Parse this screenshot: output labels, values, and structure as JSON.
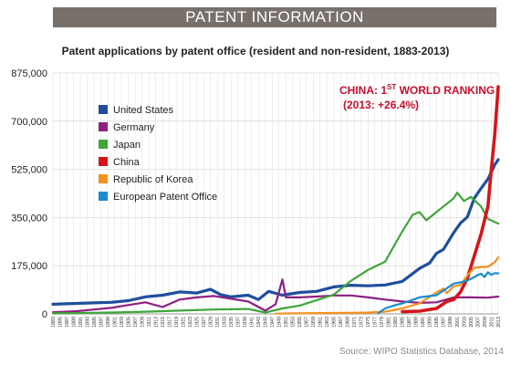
{
  "header": {
    "banner": "PATENT INFORMATION",
    "subtitle": "Patent applications by patent office (resident and non-resident, 1883-2013)",
    "source": "Source: WIPO Statistics Database, 2014"
  },
  "annotation": {
    "line1_prefix": "CHINA: 1",
    "line1_sup": "ST",
    "line1_suffix": " WORLD RANKING",
    "line2": "(2013: +26.4%)",
    "color": "#c8102e"
  },
  "chart_data": {
    "type": "line",
    "title": "Patent applications by patent office (resident and non-resident, 1883-2013)",
    "xlabel": "",
    "ylabel": "",
    "xlim": [
      1883,
      2013
    ],
    "ylim": [
      0,
      875000
    ],
    "yticks": [
      0,
      175000,
      350000,
      525000,
      700000,
      875000
    ],
    "ytick_labels": [
      "0",
      "175,000",
      "350,000",
      "525,000",
      "700,000",
      "875,000"
    ],
    "xtick_start": 1883,
    "xtick_end": 2013,
    "xtick_step": 2,
    "grid": true,
    "legend_position": "top-left",
    "series": [
      {
        "name": "United States",
        "color": "#1f4e9c",
        "points": [
          [
            1883,
            35000
          ],
          [
            1890,
            38000
          ],
          [
            1895,
            40000
          ],
          [
            1900,
            42000
          ],
          [
            1905,
            48000
          ],
          [
            1910,
            62000
          ],
          [
            1915,
            68000
          ],
          [
            1920,
            80000
          ],
          [
            1925,
            76000
          ],
          [
            1929,
            89000
          ],
          [
            1932,
            70000
          ],
          [
            1935,
            62000
          ],
          [
            1940,
            68000
          ],
          [
            1943,
            52000
          ],
          [
            1946,
            82000
          ],
          [
            1950,
            68000
          ],
          [
            1955,
            78000
          ],
          [
            1960,
            82000
          ],
          [
            1965,
            98000
          ],
          [
            1970,
            104000
          ],
          [
            1975,
            102000
          ],
          [
            1980,
            105000
          ],
          [
            1985,
            118000
          ],
          [
            1990,
            165000
          ],
          [
            1993,
            185000
          ],
          [
            1995,
            220000
          ],
          [
            1997,
            234000
          ],
          [
            2000,
            295000
          ],
          [
            2002,
            330000
          ],
          [
            2004,
            352000
          ],
          [
            2006,
            420000
          ],
          [
            2008,
            456000
          ],
          [
            2010,
            490000
          ],
          [
            2012,
            542000
          ],
          [
            2013,
            560000
          ]
        ]
      },
      {
        "name": "Germany",
        "color": "#8e1f82",
        "points": [
          [
            1883,
            6000
          ],
          [
            1890,
            10000
          ],
          [
            1895,
            16000
          ],
          [
            1900,
            22000
          ],
          [
            1905,
            32000
          ],
          [
            1910,
            42000
          ],
          [
            1915,
            25000
          ],
          [
            1920,
            52000
          ],
          [
            1925,
            60000
          ],
          [
            1930,
            65000
          ],
          [
            1935,
            55000
          ],
          [
            1940,
            45000
          ],
          [
            1945,
            12000
          ],
          [
            1948,
            35000
          ],
          [
            1950,
            125000
          ],
          [
            1951,
            60000
          ],
          [
            1955,
            60000
          ],
          [
            1960,
            63000
          ],
          [
            1965,
            67000
          ],
          [
            1970,
            67000
          ],
          [
            1975,
            60000
          ],
          [
            1980,
            52000
          ],
          [
            1985,
            45000
          ],
          [
            1990,
            40000
          ],
          [
            1995,
            42000
          ],
          [
            2000,
            60000
          ],
          [
            2005,
            60000
          ],
          [
            2010,
            59000
          ],
          [
            2013,
            63000
          ]
        ]
      },
      {
        "name": "Japan",
        "color": "#3fa63a",
        "points": [
          [
            1883,
            2000
          ],
          [
            1890,
            3000
          ],
          [
            1900,
            5000
          ],
          [
            1910,
            8000
          ],
          [
            1920,
            12000
          ],
          [
            1930,
            16000
          ],
          [
            1940,
            18000
          ],
          [
            1945,
            5000
          ],
          [
            1950,
            20000
          ],
          [
            1955,
            30000
          ],
          [
            1960,
            50000
          ],
          [
            1965,
            70000
          ],
          [
            1970,
            120000
          ],
          [
            1975,
            160000
          ],
          [
            1980,
            190000
          ],
          [
            1985,
            300000
          ],
          [
            1988,
            360000
          ],
          [
            1990,
            370000
          ],
          [
            1992,
            340000
          ],
          [
            1995,
            370000
          ],
          [
            1998,
            400000
          ],
          [
            2000,
            420000
          ],
          [
            2001,
            440000
          ],
          [
            2003,
            410000
          ],
          [
            2005,
            425000
          ],
          [
            2008,
            390000
          ],
          [
            2010,
            345000
          ],
          [
            2013,
            328000
          ]
        ]
      },
      {
        "name": "China",
        "color": "#d4161b",
        "points": [
          [
            1985,
            8000
          ],
          [
            1990,
            10000
          ],
          [
            1995,
            20000
          ],
          [
            1998,
            45000
          ],
          [
            2000,
            52000
          ],
          [
            2002,
            80000
          ],
          [
            2004,
            130000
          ],
          [
            2006,
            210000
          ],
          [
            2008,
            290000
          ],
          [
            2010,
            390000
          ],
          [
            2011,
            526000
          ],
          [
            2012,
            652000
          ],
          [
            2013,
            825000
          ]
        ]
      },
      {
        "name": "Republic of Korea",
        "color": "#f5911e",
        "points": [
          [
            1948,
            1000
          ],
          [
            1960,
            3000
          ],
          [
            1970,
            4000
          ],
          [
            1975,
            5000
          ],
          [
            1980,
            8000
          ],
          [
            1985,
            20000
          ],
          [
            1990,
            38000
          ],
          [
            1995,
            78000
          ],
          [
            1997,
            92000
          ],
          [
            1998,
            75000
          ],
          [
            2000,
            100000
          ],
          [
            2002,
            105000
          ],
          [
            2004,
            140000
          ],
          [
            2006,
            167000
          ],
          [
            2008,
            170000
          ],
          [
            2010,
            171000
          ],
          [
            2012,
            188000
          ],
          [
            2013,
            205000
          ]
        ]
      },
      {
        "name": "European Patent Office",
        "color": "#1a8bd0",
        "points": [
          [
            1978,
            3000
          ],
          [
            1980,
            20000
          ],
          [
            1983,
            32000
          ],
          [
            1985,
            38000
          ],
          [
            1990,
            60000
          ],
          [
            1995,
            68000
          ],
          [
            2000,
            110000
          ],
          [
            2003,
            117000
          ],
          [
            2005,
            127000
          ],
          [
            2007,
            141000
          ],
          [
            2008,
            146000
          ],
          [
            2009,
            134000
          ],
          [
            2010,
            151000
          ],
          [
            2011,
            142000
          ],
          [
            2012,
            148000
          ],
          [
            2013,
            147000
          ]
        ]
      }
    ]
  }
}
